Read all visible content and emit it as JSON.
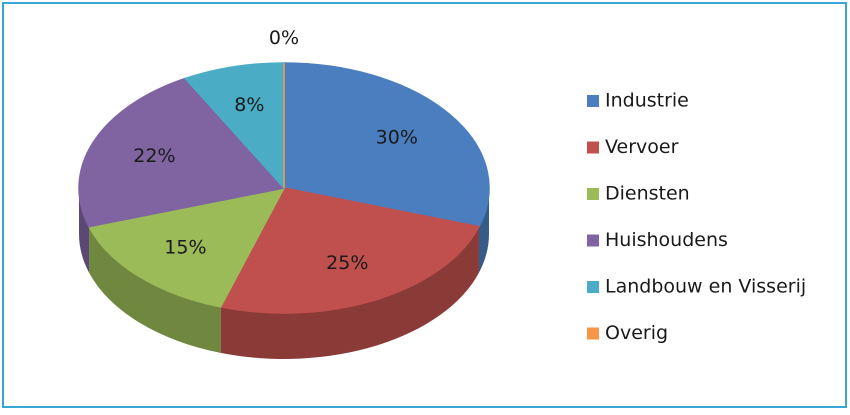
{
  "chart_data": {
    "type": "pie",
    "categories": [
      "Industrie",
      "Vervoer",
      "Diensten",
      "Huishoudens",
      "Landbouw en Visserij",
      "Overig"
    ],
    "values": [
      30,
      25,
      15,
      22,
      8,
      0
    ],
    "value_labels": [
      "30%",
      "25%",
      "15%",
      "22%",
      "8%",
      "0%"
    ],
    "colors": [
      "#4a7ebf",
      "#c0504d",
      "#9bbb59",
      "#8064a2",
      "#4bacc6",
      "#f79646"
    ],
    "legend": "right"
  }
}
